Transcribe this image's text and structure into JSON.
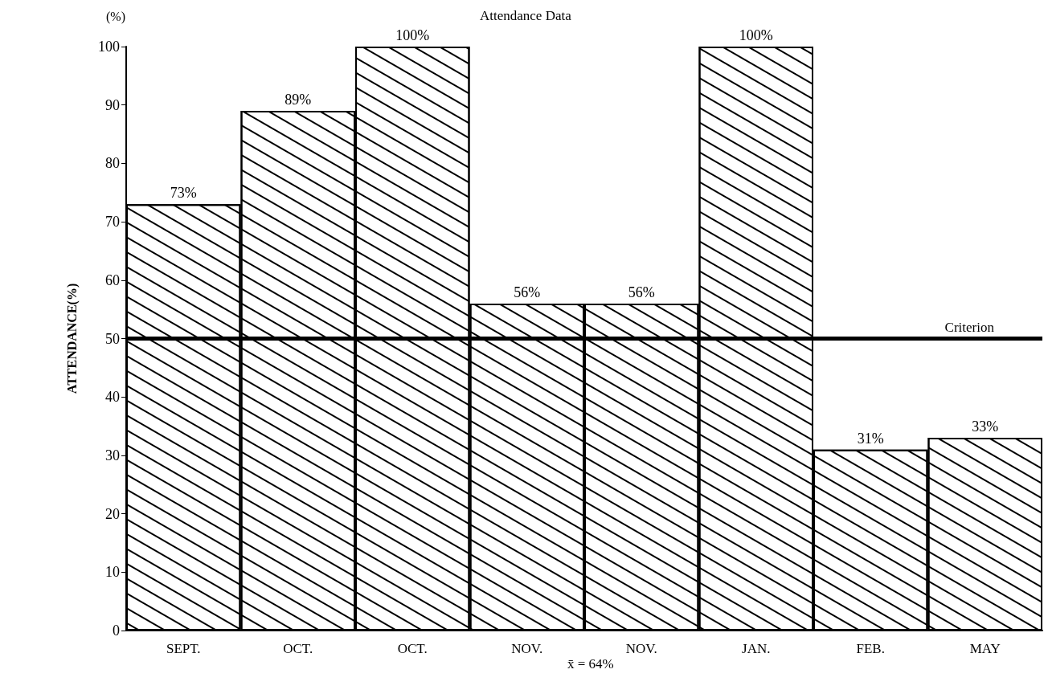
{
  "chart_data": {
    "type": "bar",
    "title": "Attendance Data",
    "ylabel": "ATTENDANCE(%)",
    "categories": [
      "SEPT.",
      "OCT.",
      "OCT.",
      "NOV.",
      "NOV.",
      "JAN.",
      "FEB.",
      "MAY"
    ],
    "values": [
      73,
      89,
      100,
      56,
      56,
      100,
      31,
      33
    ],
    "value_labels": [
      "73%",
      "89%",
      "100%",
      "56%",
      "56%",
      "100%",
      "31%",
      "33%"
    ],
    "color": "#ffffff",
    "ylim": [
      0,
      100
    ],
    "yticks": [
      0,
      10,
      20,
      30,
      40,
      50,
      60,
      70,
      80,
      90,
      100
    ],
    "grid": false,
    "ref_lines": [
      {
        "axis": "y",
        "value": 50,
        "label": "Criterion",
        "color": "#000000"
      }
    ],
    "annotations": [
      "(%)",
      "x̄ = 64%"
    ]
  }
}
